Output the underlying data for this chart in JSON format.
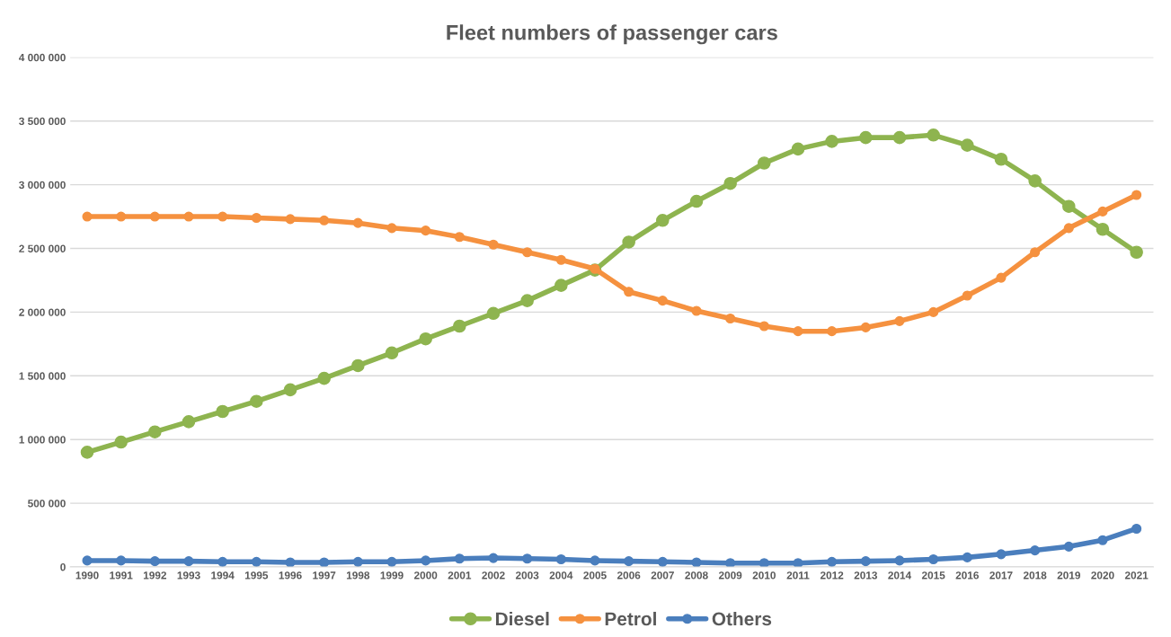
{
  "chart_data": {
    "type": "line",
    "title": "Fleet numbers of passenger cars",
    "categories": [
      "1990",
      "1991",
      "1992",
      "1993",
      "1994",
      "1995",
      "1996",
      "1997",
      "1998",
      "1999",
      "2000",
      "2001",
      "2002",
      "2003",
      "2004",
      "2005",
      "2006",
      "2007",
      "2008",
      "2009",
      "2010",
      "2011",
      "2012",
      "2013",
      "2014",
      "2015",
      "2016",
      "2017",
      "2018",
      "2019",
      "2020",
      "2021"
    ],
    "series": [
      {
        "name": "Diesel",
        "color": "#8eb44f",
        "values": [
          900000,
          980000,
          1060000,
          1140000,
          1220000,
          1300000,
          1390000,
          1480000,
          1580000,
          1680000,
          1790000,
          1890000,
          1990000,
          2090000,
          2210000,
          2330000,
          2550000,
          2720000,
          2870000,
          3010000,
          3170000,
          3280000,
          3340000,
          3370000,
          3370000,
          3390000,
          3310000,
          3200000,
          3030000,
          2830000,
          2650000,
          2470000
        ]
      },
      {
        "name": "Petrol",
        "color": "#f5913f",
        "values": [
          2750000,
          2750000,
          2750000,
          2750000,
          2750000,
          2740000,
          2730000,
          2720000,
          2700000,
          2660000,
          2640000,
          2590000,
          2530000,
          2470000,
          2410000,
          2340000,
          2160000,
          2090000,
          2010000,
          1950000,
          1890000,
          1850000,
          1850000,
          1880000,
          1930000,
          2000000,
          2130000,
          2270000,
          2470000,
          2660000,
          2790000,
          2920000
        ]
      },
      {
        "name": "Others",
        "color": "#4a7ebd",
        "values": [
          50000,
          50000,
          45000,
          45000,
          40000,
          40000,
          35000,
          35000,
          40000,
          40000,
          50000,
          65000,
          70000,
          65000,
          60000,
          50000,
          45000,
          40000,
          35000,
          30000,
          30000,
          30000,
          40000,
          45000,
          50000,
          60000,
          75000,
          100000,
          130000,
          160000,
          210000,
          300000
        ]
      }
    ],
    "ylim": [
      0,
      4000000
    ],
    "yticks": [
      {
        "value": 0,
        "label": "0"
      },
      {
        "value": 500000,
        "label": "500 000"
      },
      {
        "value": 1000000,
        "label": "1 000 000"
      },
      {
        "value": 1500000,
        "label": "1 500 000"
      },
      {
        "value": 2000000,
        "label": "2 000 000"
      },
      {
        "value": 2500000,
        "label": "2 500 000"
      },
      {
        "value": 3000000,
        "label": "3 000 000"
      },
      {
        "value": 3500000,
        "label": "3 500 000"
      },
      {
        "value": 4000000,
        "label": "4 000 000"
      }
    ],
    "grid": "y",
    "legend": "bottom",
    "marker": "circle",
    "line_style": "solid"
  }
}
